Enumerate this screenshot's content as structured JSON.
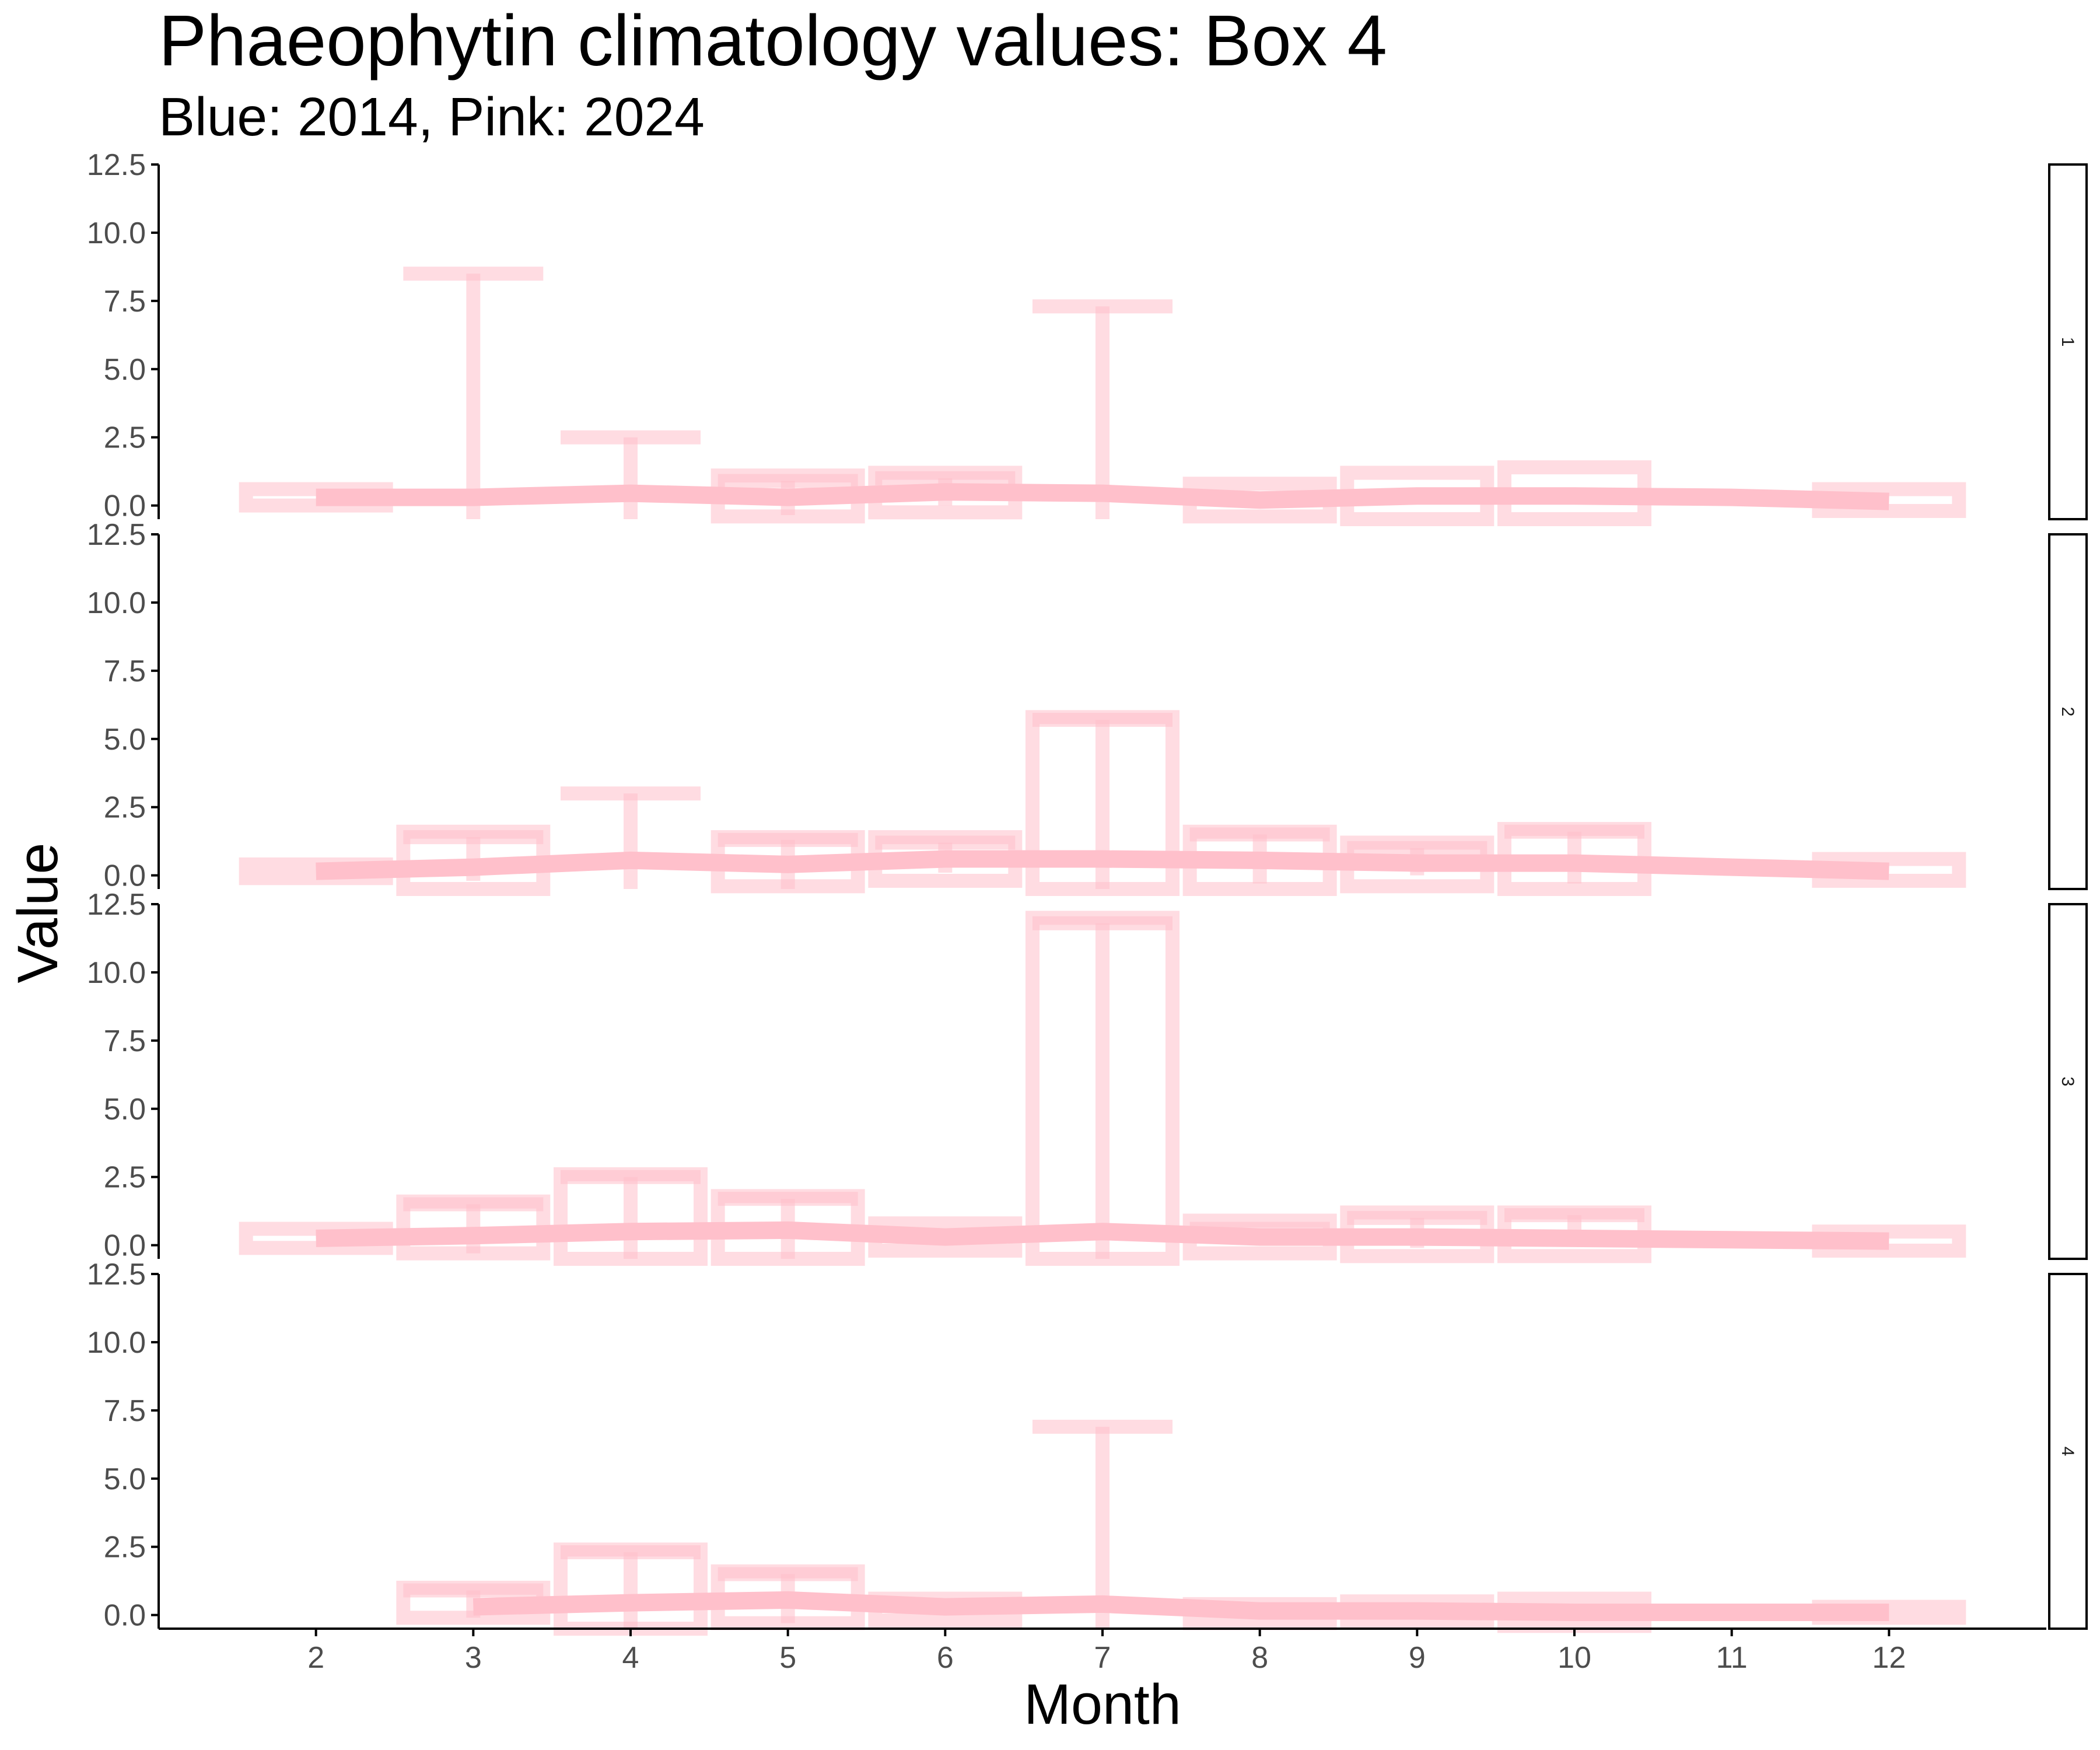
{
  "chart_data": {
    "type": "line",
    "title": "Phaeophytin climatology values: Box 4",
    "subtitle": "Blue: 2014, Pink: 2024",
    "xlabel": "Month",
    "ylabel": "Value",
    "x_ticks": [
      2,
      3,
      4,
      5,
      6,
      7,
      8,
      9,
      10,
      11,
      12
    ],
    "y_ticks": [
      "0.0",
      "2.5",
      "5.0",
      "7.5",
      "10.0",
      "12.5"
    ],
    "xlim": [
      1,
      13
    ],
    "ylim": [
      -0.5,
      12.5
    ],
    "grid": false,
    "colors": {
      "line": "#ffc0cb",
      "band": "#ffc0cb",
      "errorbar": "#ffc0cb",
      "axis": "#000000",
      "tick_label": "#4d4d4d"
    },
    "panels": [
      {
        "strip_label": "1",
        "months": [
          2,
          3,
          4,
          5,
          6,
          7,
          8,
          9,
          10,
          11,
          12
        ],
        "mean": [
          0.3,
          0.3,
          0.45,
          0.3,
          0.5,
          0.45,
          0.2,
          0.35,
          0.35,
          0.3,
          0.15
        ],
        "band_low": [
          0.0,
          null,
          null,
          -0.4,
          -0.25,
          null,
          -0.4,
          -0.5,
          -0.5,
          null,
          -0.2
        ],
        "band_high": [
          0.6,
          null,
          null,
          1.1,
          1.2,
          null,
          0.8,
          1.2,
          1.4,
          null,
          0.6
        ],
        "err_low": [
          null,
          -0.5,
          -0.5,
          -0.35,
          0.0,
          -0.5,
          null,
          null,
          null,
          null,
          null
        ],
        "err_high": [
          null,
          8.5,
          2.5,
          0.9,
          1.0,
          7.3,
          null,
          1.0,
          1.3,
          null,
          null
        ]
      },
      {
        "strip_label": "2",
        "months": [
          2,
          3,
          4,
          5,
          6,
          7,
          8,
          9,
          10,
          11,
          12
        ],
        "mean": [
          0.15,
          0.3,
          0.55,
          0.4,
          0.6,
          0.6,
          0.55,
          0.45,
          0.45,
          0.3,
          0.15
        ],
        "band_low": [
          -0.1,
          -0.5,
          null,
          -0.4,
          -0.2,
          -0.5,
          -0.5,
          -0.4,
          -0.5,
          null,
          -0.2
        ],
        "band_high": [
          0.4,
          1.6,
          3.1,
          1.4,
          1.4,
          5.8,
          1.6,
          1.2,
          1.7,
          null,
          0.6
        ],
        "err_low": [
          null,
          -0.2,
          -0.5,
          -0.5,
          0.1,
          -0.5,
          -0.3,
          0.0,
          -0.3,
          null,
          null
        ],
        "err_high": [
          null,
          1.4,
          3.0,
          1.3,
          1.2,
          5.7,
          1.5,
          1.0,
          1.6,
          null,
          null
        ]
      },
      {
        "strip_label": "3",
        "months": [
          2,
          3,
          4,
          5,
          6,
          7,
          8,
          9,
          10,
          11,
          12
        ],
        "mean": [
          0.25,
          0.35,
          0.5,
          0.55,
          0.3,
          0.5,
          0.3,
          0.3,
          0.25,
          0.2,
          0.15
        ],
        "band_low": [
          -0.1,
          -0.3,
          -0.5,
          -0.5,
          -0.2,
          -0.5,
          -0.3,
          -0.4,
          -0.4,
          null,
          -0.2
        ],
        "band_high": [
          0.6,
          1.6,
          2.6,
          1.8,
          0.8,
          12.0,
          0.9,
          1.2,
          1.2,
          null,
          0.5
        ],
        "err_low": [
          null,
          -0.3,
          -0.5,
          -0.5,
          null,
          -0.5,
          0.0,
          -0.1,
          0.0,
          null,
          null
        ],
        "err_high": [
          null,
          1.5,
          2.5,
          1.7,
          null,
          11.8,
          0.6,
          1.0,
          1.1,
          null,
          null
        ]
      },
      {
        "strip_label": "4",
        "months": [
          3,
          4,
          5,
          6,
          7,
          8,
          9,
          10,
          11,
          12
        ],
        "mean": [
          0.3,
          0.45,
          0.55,
          0.3,
          0.4,
          0.15,
          0.15,
          0.1,
          0.1,
          0.1
        ],
        "band_low": [
          -0.1,
          -0.5,
          -0.3,
          -0.2,
          null,
          -0.3,
          -0.2,
          -0.4,
          null,
          -0.1
        ],
        "band_high": [
          1.0,
          2.4,
          1.6,
          0.6,
          7.0,
          0.4,
          0.5,
          0.6,
          null,
          0.3
        ],
        "err_low": [
          -0.1,
          -0.5,
          -0.3,
          null,
          -0.5,
          null,
          null,
          null,
          null,
          null
        ],
        "err_high": [
          0.9,
          2.3,
          1.5,
          null,
          6.9,
          null,
          null,
          null,
          null,
          null
        ]
      }
    ]
  }
}
